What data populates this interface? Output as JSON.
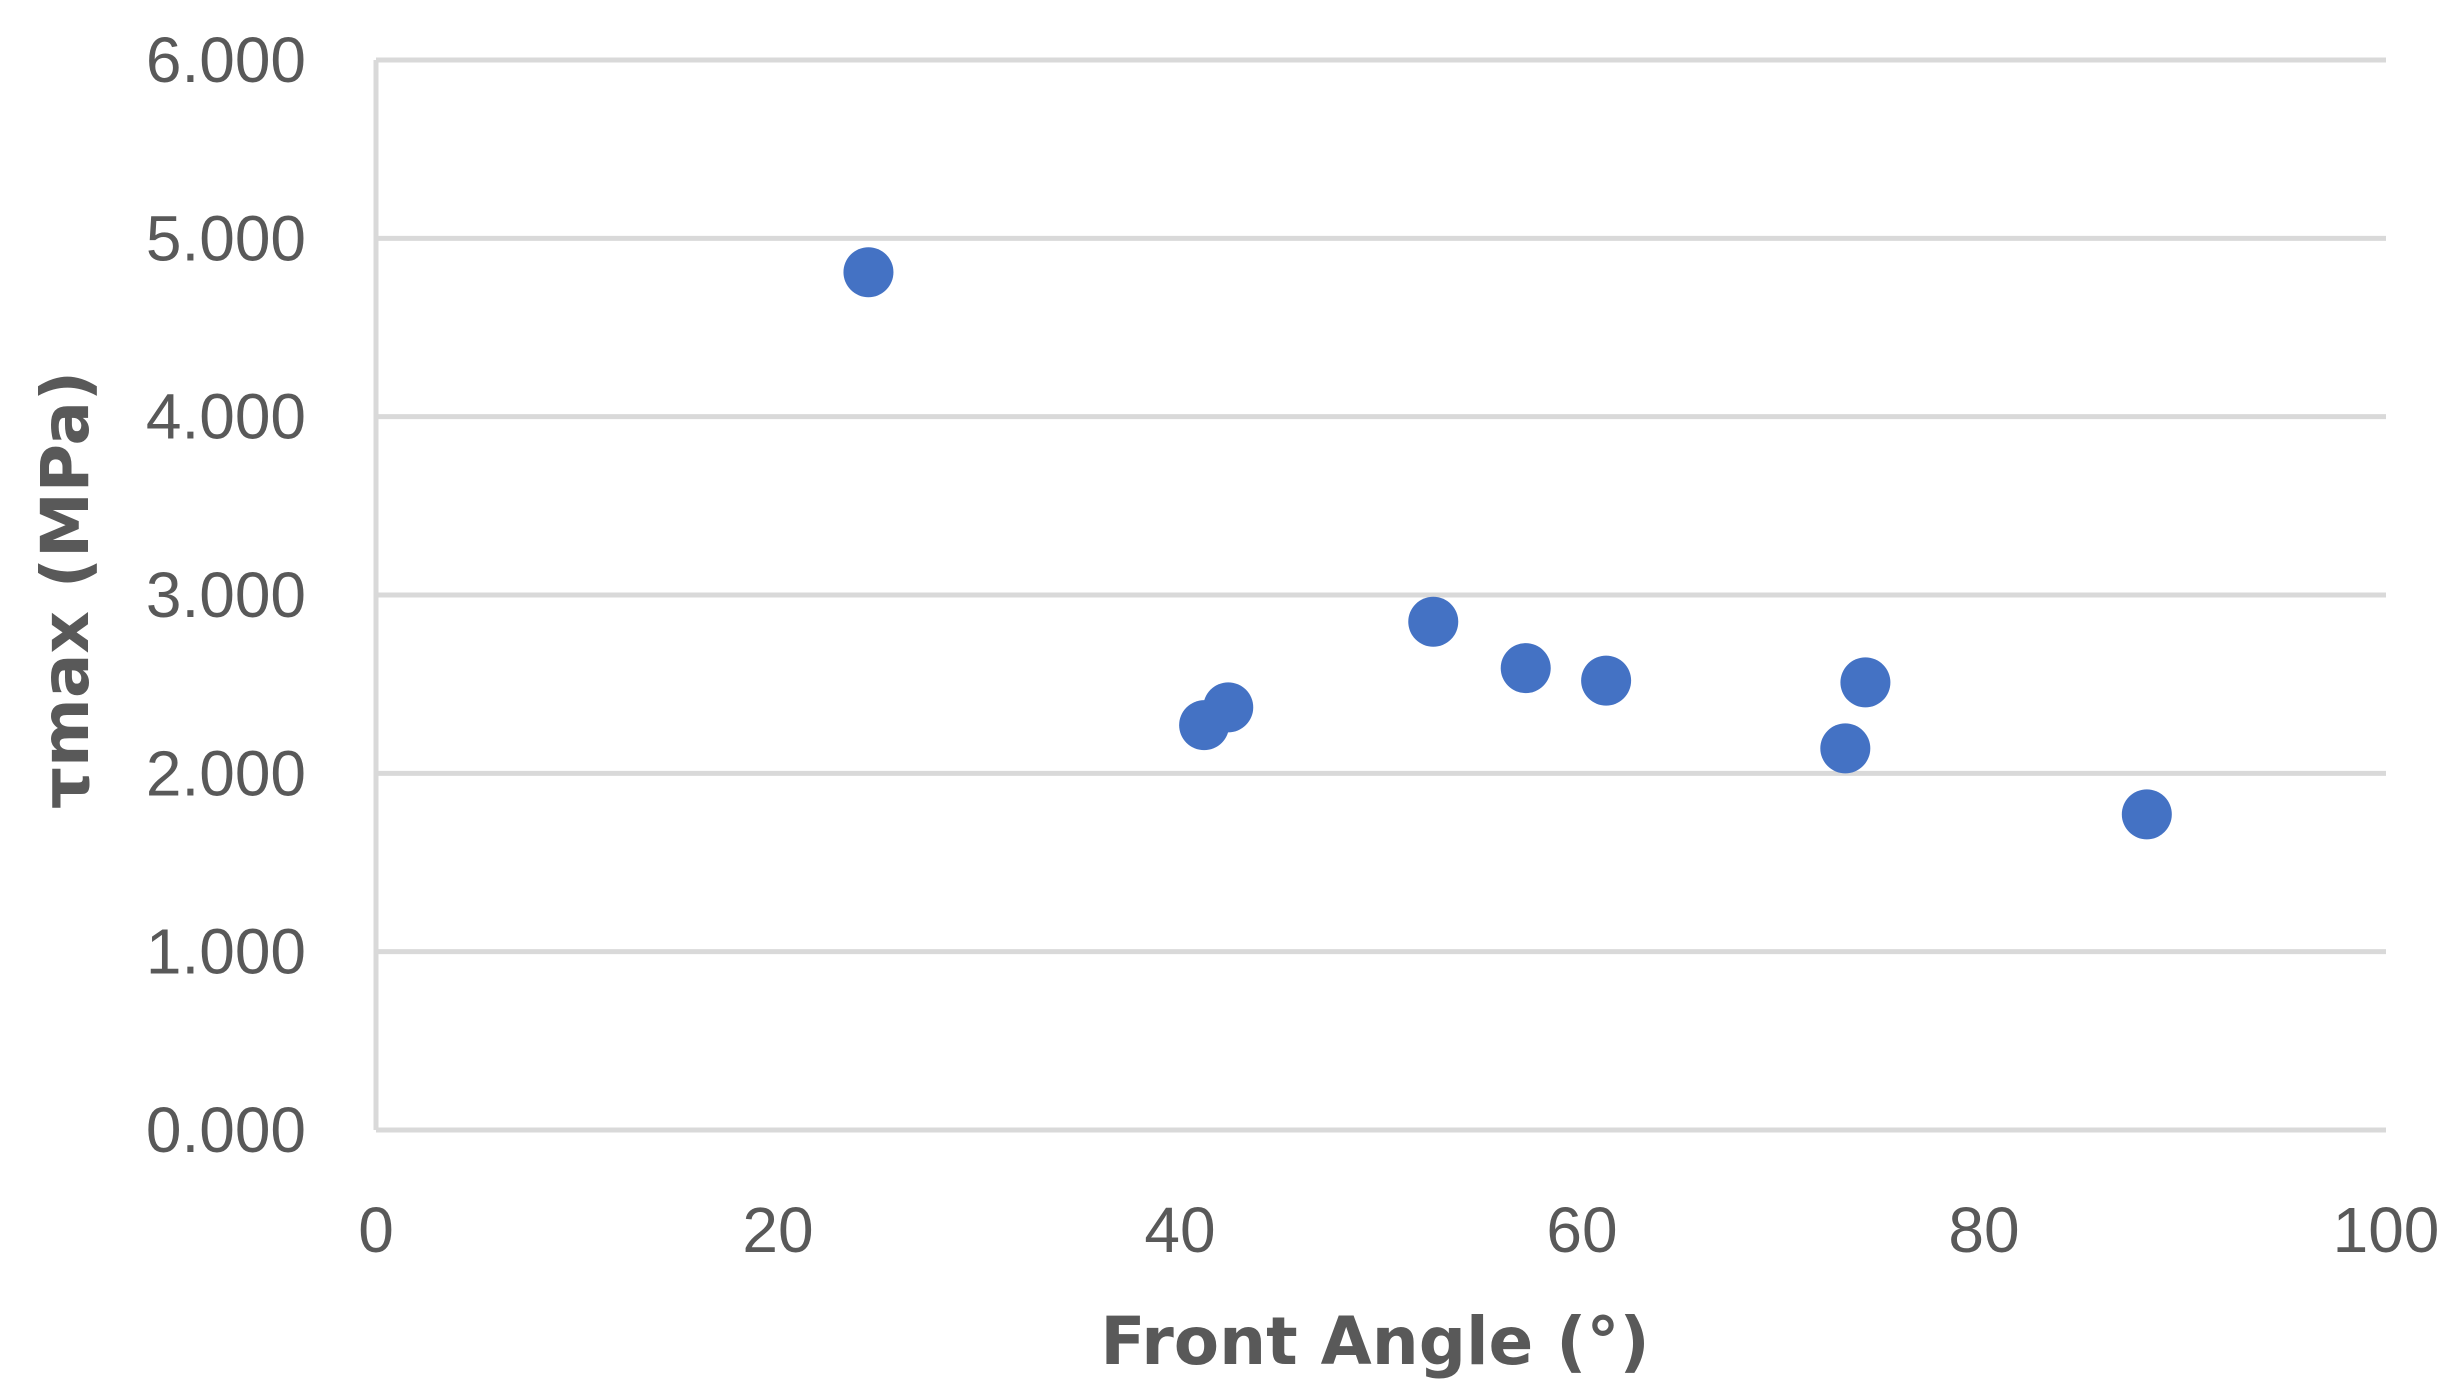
{
  "chart_data": {
    "type": "scatter",
    "title": "",
    "xlabel": "Front Angle (°)",
    "ylabel": "τmax (MPa)",
    "xlim": [
      0,
      100
    ],
    "ylim": [
      0,
      6
    ],
    "x_ticks": [
      "0",
      "20",
      "40",
      "60",
      "80",
      "100"
    ],
    "y_ticks": [
      "0.000",
      "1.000",
      "2.000",
      "3.000",
      "4.000",
      "5.000",
      "6.000"
    ],
    "grid": true,
    "legend": "none",
    "marker_color": "#4472c4",
    "series": [
      {
        "points": [
          {
            "x": 24.5,
            "y": 4.81
          },
          {
            "x": 41.2,
            "y": 2.27
          },
          {
            "x": 42.4,
            "y": 2.37
          },
          {
            "x": 52.6,
            "y": 2.85
          },
          {
            "x": 57.2,
            "y": 2.59
          },
          {
            "x": 61.2,
            "y": 2.52
          },
          {
            "x": 73.1,
            "y": 2.14
          },
          {
            "x": 74.1,
            "y": 2.51
          },
          {
            "x": 88.1,
            "y": 1.77
          }
        ]
      }
    ]
  }
}
